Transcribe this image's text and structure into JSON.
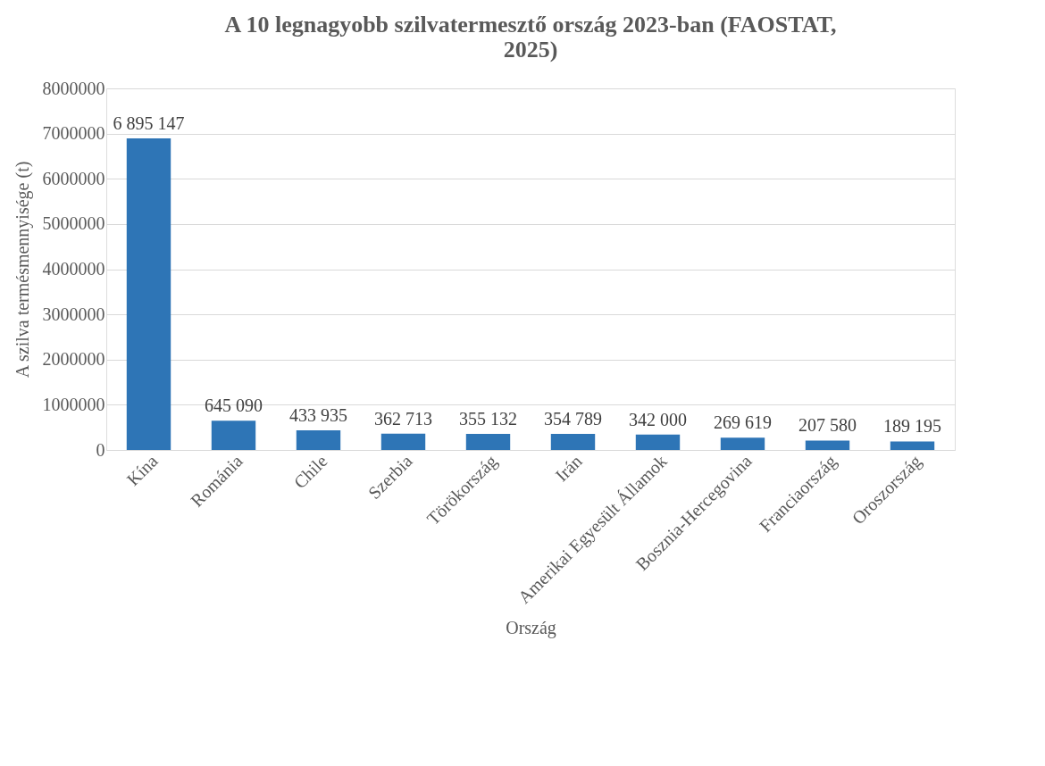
{
  "chart_data": {
    "type": "bar",
    "title": "A 10 legnagyobb szilvatermesztő ország 2023-ban (FAOSTAT, 2025)",
    "xlabel": "Ország",
    "ylabel": "A szilva termésmennyisége (t)",
    "categories": [
      "Kína",
      "Románia",
      "Chile",
      "Szerbia",
      "Törökország",
      "Irán",
      "Amerikai Egyesült Államok",
      "Bosznia-Hercegovina",
      "Franciaország",
      "Oroszország"
    ],
    "values": [
      6895147,
      645090,
      433935,
      362713,
      355132,
      354789,
      342000,
      269619,
      207580,
      189195
    ],
    "value_labels": [
      "6 895 147",
      "645 090",
      "433 935",
      "362 713",
      "355 132",
      "354 789",
      "342 000",
      "269 619",
      "207 580",
      "189 195"
    ],
    "color": "#2e75b6",
    "ylim": [
      0,
      8000000
    ],
    "yticks": [
      0,
      1000000,
      2000000,
      3000000,
      4000000,
      5000000,
      6000000,
      7000000,
      8000000
    ],
    "grid": "y"
  }
}
